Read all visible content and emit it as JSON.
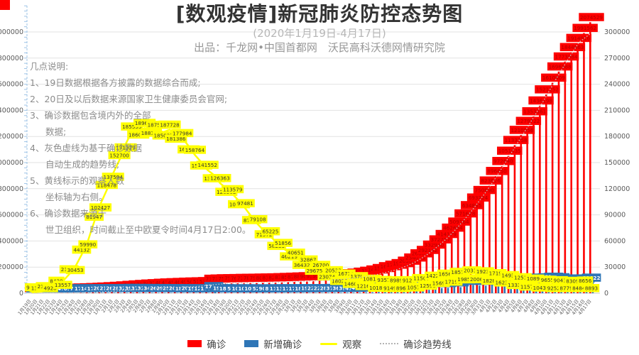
{
  "header": {
    "title": "[数观疫情]新冠肺炎防控态势图",
    "subtitle": "(2020年1月19日-4月17日)",
    "producer": "出品：千龙网•中国首都网　沃民高科沃德网情研究院"
  },
  "notes": {
    "lines": [
      "几点说明:",
      "1、19日数据根据各方披露的数据综合而成;",
      "2、20日及以后数据来源国家卫生健康委员会官网;",
      "3、确诊数据包含境内外的全部",
      "数据;",
      "4、灰色虚线为基于确诊数据",
      "自动生成的趋势线;",
      "5、黄线标示的观察人数",
      "坐标轴为右侧。",
      "6、确诊数据来源于",
      "世卫组织，时间截止至中欧夏令时间4月17日2:00。"
    ]
  },
  "legend": {
    "items": [
      {
        "label": "确诊",
        "type": "bar",
        "color": "#fe0000"
      },
      {
        "label": "新增确诊",
        "type": "bar",
        "color": "#2e75b6"
      },
      {
        "label": "观察",
        "type": "line",
        "color": "#ffff00"
      },
      {
        "label": "确诊趋势线",
        "type": "dotted",
        "color": "#b3b3b3"
      }
    ]
  },
  "chart_data": {
    "type": "combo",
    "title": "[数观疫情]新冠肺炎防控态势图",
    "axes": {
      "left": {
        "min": 0,
        "max": 2200000,
        "step": 200000
      },
      "right": {
        "min": 0,
        "max": 330000,
        "step": 30000
      }
    },
    "grid": true,
    "legend_position": "bottom",
    "dates": [
      "1月19日",
      "1月20日",
      "1月21日",
      "1月22日",
      "1月23日",
      "1月24日",
      "1月25日",
      "1月26日",
      "1月27日",
      "1月28日",
      "1月29日",
      "1月30日",
      "1月31日",
      "2月1日",
      "2月2日",
      "2月3日",
      "2月4日",
      "2月5日",
      "2月6日",
      "2月7日",
      "2月8日",
      "2月9日",
      "2月10日",
      "2月11日",
      "2月12日",
      "2月13日",
      "2月14日",
      "2月15日",
      "2月16日",
      "2月17日",
      "2月18日",
      "2月19日",
      "2月20日",
      "2月21日",
      "2月22日",
      "2月23日",
      "2月24日",
      "2月25日",
      "2月26日",
      "2月27日",
      "2月28日",
      "2月29日",
      "3月1日",
      "3月2日",
      "3月3日",
      "3月4日",
      "3月5日",
      "3月6日",
      "3月7日",
      "3月8日",
      "3月9日",
      "3月10日",
      "3月11日",
      "3月12日",
      "3月13日",
      "3月14日",
      "3月15日",
      "3月16日",
      "3月17日",
      "3月18日",
      "3月19日",
      "3月20日",
      "3月21日",
      "3月22日",
      "3月23日",
      "3月24日",
      "3月25日",
      "3月26日",
      "3月27日",
      "3月28日",
      "3月29日",
      "3月30日",
      "3月31日",
      "4月1日",
      "4月2日",
      "4月3日",
      "4月4日",
      "4月5日",
      "4月6日",
      "4月7日",
      "4月8日",
      "4月9日",
      "4月10日",
      "4月11日",
      "4月12日",
      "4月13日",
      "4月14日",
      "4月15日",
      "4月16日",
      "4月17日"
    ],
    "series": [
      {
        "name": "确诊",
        "type": "bar",
        "color": "#fe0000",
        "axis": "left",
        "values": [
          198,
          282,
          314,
          581,
          846,
          1320,
          2014,
          2798,
          4593,
          6065,
          7818,
          9826,
          11953,
          14557,
          17391,
          20630,
          24554,
          28276,
          31481,
          34886,
          37558,
          40554,
          43103,
          45171,
          46997,
          49053,
          50580,
          51857,
          53454,
          71429,
          73332,
          75204,
          75748,
          76769,
          77794,
          78811,
          79331,
          80239,
          81109,
          82294,
          83652,
          85403,
          87137,
          88948,
          90869,
          93091,
          95324,
          98192,
          101927,
          105586,
          109577,
          113702,
          118322,
          125048,
          132758,
          142539,
          153517,
          167515,
          179112,
          191127,
          209839,
          234073,
          266073,
          292142,
          332930,
          372757,
          414179,
          462684,
          509164,
          571678,
          634835,
          693224,
          750890,
          823626,
          896450,
          972640,
          1051635,
          1133758,
          1210956,
          1279722,
          1353361,
          1436198,
          1521252,
          1610909,
          1696588,
          1773084,
          1844863,
          1914916,
          1991562,
          2074529
        ]
      },
      {
        "name": "新增确诊",
        "type": "bar",
        "color": "#2e75b6",
        "axis": "left",
        "values": [
          60,
          93,
          149,
          141,
          265,
          474,
          694,
          784,
          1795,
          1472,
          1753,
          2008,
          2127,
          2604,
          2834,
          3239,
          3924,
          3722,
          3205,
          3405,
          2672,
          2996,
          2549,
          2068,
          1826,
          2056,
          1527,
          1277,
          1597,
          17975,
          1903,
          1872,
          544,
          1021,
          1025,
          1017,
          520,
          908,
          870,
          1185,
          1358,
          1751,
          1734,
          1811,
          1921,
          2222,
          2233,
          2868,
          3735,
          3659,
          3991,
          4125,
          4620,
          6726,
          7710,
          9781,
          10978,
          13998,
          11597,
          12015,
          18712,
          24234,
          32000,
          26069,
          40788,
          39827,
          41422,
          48505,
          46480,
          62514,
          63157,
          58389,
          57666,
          72736,
          72824,
          76190,
          78995,
          82123,
          77200,
          68766,
          73639,
          82837,
          85063,
          89657,
          85679,
          76496,
          71572,
          70053,
          76646,
          82622
        ]
      },
      {
        "name": "观察",
        "type": "line",
        "color": "#ffff00",
        "axis": "right",
        "values": [
          922,
          1394,
          2197,
          4928,
          8420,
          13557,
          21556,
          30453,
          44132,
          59990,
          81947,
          102427,
          118478,
          137594,
          152700,
          171329,
          185555,
          186045,
          189660,
          188183,
          187518,
          185037,
          187728,
          181386,
          177984,
          169039,
          158764,
          150539,
          141552,
          135881,
          126363,
          120302,
          113579,
          106089,
          97481,
          87902,
          79108,
          71572,
          65225,
          58233,
          51856,
          46219,
          40651,
          36432,
          32867,
          29675,
          26700,
          23074,
          20533,
          18029,
          16710,
          14607,
          13701,
          12161,
          10819,
          10189,
          9357,
          9149,
          8989,
          8967,
          9120,
          10571,
          11507,
          12598,
          14229,
          15699,
          16569,
          17198,
          18571,
          19853,
          20314,
          20063,
          19235,
          18286,
          17198,
          16236,
          14934,
          13334,
          12510,
          11576,
          10896,
          10435,
          9655,
          9252,
          9041,
          8779,
          8309,
          8484,
          8656,
          8893
        ]
      },
      {
        "name": "确诊趋势线",
        "type": "trend",
        "color": "#c9c9c9",
        "axis": "left",
        "based_on": "确诊"
      }
    ]
  }
}
